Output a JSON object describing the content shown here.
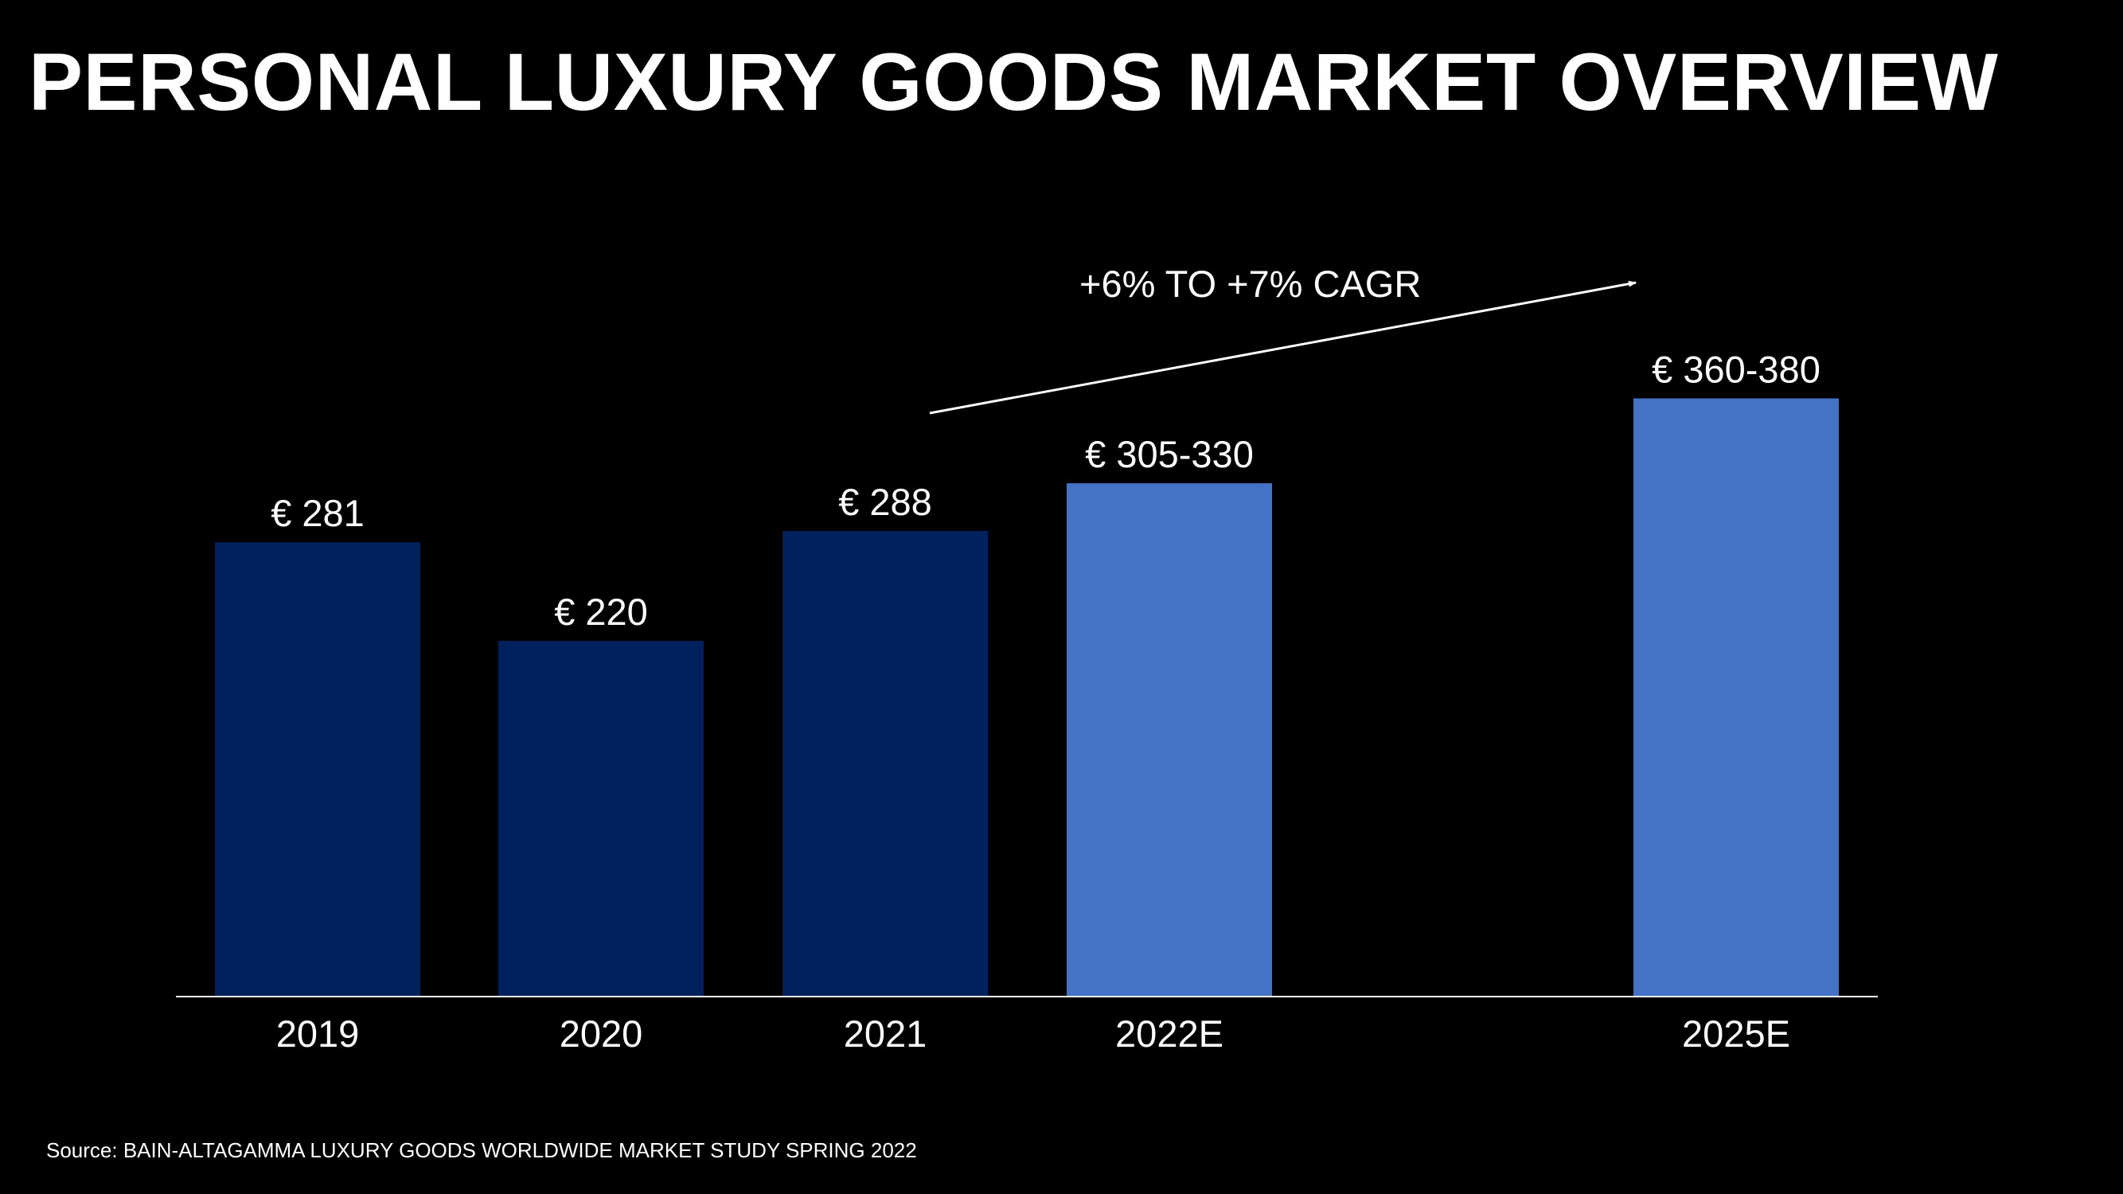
{
  "slide": {
    "title": "PERSONAL LUXURY GOODS MARKET OVERVIEW",
    "source": "Source: BAIN-ALTAGAMMA LUXURY GOODS WORLDWIDE MARKET STUDY SPRING 2022"
  },
  "colors": {
    "background": "#000000",
    "actual": "#00205e",
    "estimate": "#4472c4",
    "text": "#ffffff"
  },
  "chart_data": {
    "type": "bar",
    "title": "",
    "xlabel": "",
    "ylabel": "",
    "grid": false,
    "ylim": [
      0,
      385
    ],
    "categories": [
      "2019",
      "2020",
      "2021",
      "2022E",
      "2025E"
    ],
    "values": [
      281,
      220,
      288,
      317.5,
      370
    ],
    "value_ranges": [
      null,
      null,
      null,
      [
        305,
        330
      ],
      [
        360,
        380
      ]
    ],
    "data_labels": [
      "€ 281",
      "€ 220",
      "€ 288",
      "€ 305-330",
      "€ 360-380"
    ],
    "kinds": [
      "actual",
      "actual",
      "actual",
      "estimate",
      "estimate"
    ],
    "annotation": "+6% TO +7% CAGR"
  }
}
